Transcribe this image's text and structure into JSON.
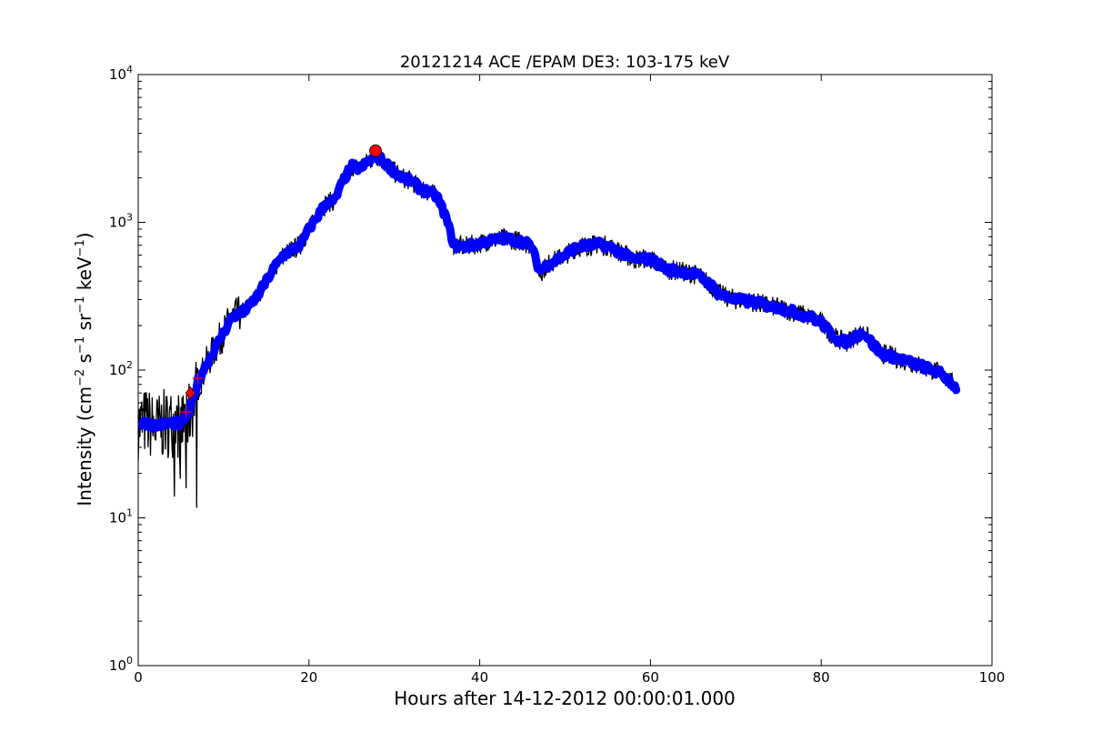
{
  "chart_data": {
    "type": "line",
    "title": "20121214 ACE /EPAM DE3: 103-175 keV",
    "xlabel": "Hours after 14-12-2012 00:00:01.000",
    "ylabel": {
      "prefix": "Intensity (cm",
      "sup1": "−2",
      "mid1": " s",
      "sup2": "−1",
      "mid2": " sr",
      "sup3": "−1",
      "mid3": " keV",
      "sup4": "−1",
      "suffix": ")"
    },
    "xlim": [
      0,
      100
    ],
    "ylim": [
      1,
      10000
    ],
    "yscale": "log",
    "grid": false,
    "x_ticks": [
      {
        "value": 0,
        "label": "0"
      },
      {
        "value": 20,
        "label": "20"
      },
      {
        "value": 40,
        "label": "40"
      },
      {
        "value": 60,
        "label": "60"
      },
      {
        "value": 80,
        "label": "80"
      },
      {
        "value": 100,
        "label": "100"
      }
    ],
    "y_ticks": [
      {
        "value": 1,
        "base": "10",
        "exp": "0"
      },
      {
        "value": 10,
        "base": "10",
        "exp": "1"
      },
      {
        "value": 100,
        "base": "10",
        "exp": "2"
      },
      {
        "value": 1000,
        "base": "10",
        "exp": "3"
      },
      {
        "value": 10000,
        "base": "10",
        "exp": "4"
      }
    ],
    "series": [
      {
        "role": "raw-intensity",
        "color": "#000000",
        "x": [
          0,
          1,
          2,
          3,
          4,
          5,
          6,
          7,
          8,
          9,
          10,
          11,
          12,
          13,
          14,
          15,
          16,
          17,
          18,
          19,
          20,
          21,
          22,
          23,
          24,
          25,
          26,
          27,
          28,
          29,
          30,
          31,
          32,
          33,
          34,
          35,
          36,
          37,
          38,
          39,
          40,
          41,
          42,
          43,
          44,
          45,
          46,
          47,
          48,
          49,
          50,
          51,
          52,
          53,
          54,
          55,
          56,
          57,
          58,
          59,
          60,
          61,
          62,
          63,
          64,
          65,
          66,
          67,
          68,
          69,
          70,
          71,
          72,
          73,
          74,
          75,
          76,
          77,
          78,
          79,
          80,
          81,
          82,
          83,
          84,
          85,
          86,
          87,
          88,
          89,
          90,
          91,
          92,
          93,
          94,
          95,
          95.8
        ],
        "y": [
          42,
          45,
          40,
          43,
          44,
          42,
          50,
          80,
          110,
          140,
          180,
          230,
          240,
          270,
          320,
          400,
          500,
          600,
          650,
          700,
          900,
          1100,
          1350,
          1400,
          1900,
          2400,
          2300,
          2600,
          2800,
          2500,
          2200,
          2000,
          1900,
          1700,
          1600,
          1500,
          1100,
          700,
          680,
          700,
          720,
          750,
          760,
          780,
          760,
          740,
          700,
          450,
          520,
          560,
          600,
          660,
          690,
          700,
          710,
          690,
          650,
          600,
          560,
          570,
          560,
          520,
          480,
          470,
          460,
          450,
          420,
          380,
          330,
          310,
          300,
          295,
          290,
          280,
          270,
          265,
          255,
          245,
          235,
          225,
          210,
          180,
          160,
          155,
          170,
          180,
          150,
          130,
          125,
          120,
          115,
          110,
          105,
          100,
          95,
          85,
          75
        ]
      },
      {
        "role": "smoothed-intensity",
        "color": "#0000ff",
        "x": [
          0,
          1,
          2,
          3,
          4,
          5,
          6,
          7,
          8,
          9,
          10,
          11,
          12,
          13,
          14,
          15,
          16,
          17,
          18,
          19,
          20,
          21,
          22,
          23,
          24,
          25,
          26,
          27,
          28,
          29,
          30,
          31,
          32,
          33,
          34,
          35,
          36,
          37,
          38,
          39,
          40,
          41,
          42,
          43,
          44,
          45,
          46,
          47,
          48,
          49,
          50,
          51,
          52,
          53,
          54,
          55,
          56,
          57,
          58,
          59,
          60,
          61,
          62,
          63,
          64,
          65,
          66,
          67,
          68,
          69,
          70,
          71,
          72,
          73,
          74,
          75,
          76,
          77,
          78,
          79,
          80,
          81,
          82,
          83,
          84,
          85,
          86,
          87,
          88,
          89,
          90,
          91,
          92,
          93,
          94,
          95,
          95.8
        ],
        "y": [
          43,
          44,
          42,
          43,
          44,
          43,
          52,
          85,
          110,
          140,
          180,
          230,
          240,
          270,
          320,
          400,
          500,
          600,
          650,
          700,
          900,
          1100,
          1350,
          1400,
          1900,
          2400,
          2300,
          2600,
          2800,
          2500,
          2200,
          2000,
          1900,
          1700,
          1600,
          1500,
          1100,
          700,
          680,
          700,
          720,
          750,
          760,
          780,
          760,
          740,
          700,
          470,
          520,
          560,
          600,
          660,
          690,
          700,
          710,
          690,
          650,
          600,
          560,
          570,
          560,
          520,
          480,
          470,
          460,
          450,
          420,
          380,
          330,
          310,
          300,
          295,
          290,
          280,
          270,
          265,
          255,
          245,
          235,
          225,
          210,
          180,
          160,
          155,
          170,
          180,
          150,
          130,
          125,
          120,
          115,
          110,
          105,
          100,
          95,
          85,
          75
        ]
      }
    ],
    "markers": [
      {
        "kind": "onset-diamond",
        "x": 6.1,
        "y": 70,
        "color": "#ff0000"
      },
      {
        "kind": "peak-circle",
        "x": 27.8,
        "y": 3050,
        "color": "#ff0000"
      },
      {
        "kind": "plus",
        "x": 5.6,
        "y": 52,
        "color": "#ff0000"
      },
      {
        "kind": "plus",
        "x": 7.0,
        "y": 88,
        "color": "#ff0000"
      }
    ]
  }
}
